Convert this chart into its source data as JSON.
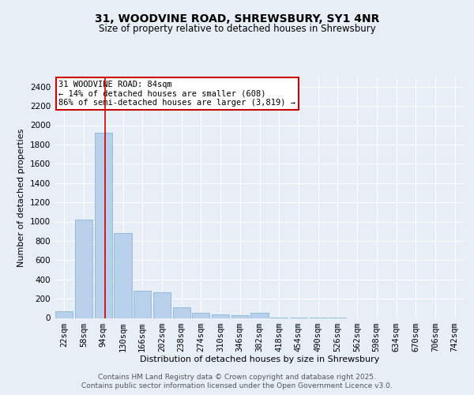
{
  "title_line1": "31, WOODVINE ROAD, SHREWSBURY, SY1 4NR",
  "title_line2": "Size of property relative to detached houses in Shrewsbury",
  "xlabel": "Distribution of detached houses by size in Shrewsbury",
  "ylabel": "Number of detached properties",
  "categories": [
    "22sqm",
    "58sqm",
    "94sqm",
    "130sqm",
    "166sqm",
    "202sqm",
    "238sqm",
    "274sqm",
    "310sqm",
    "346sqm",
    "382sqm",
    "418sqm",
    "454sqm",
    "490sqm",
    "526sqm",
    "562sqm",
    "598sqm",
    "634sqm",
    "670sqm",
    "706sqm",
    "742sqm"
  ],
  "values": [
    70,
    1020,
    1920,
    880,
    280,
    270,
    110,
    50,
    40,
    30,
    50,
    5,
    5,
    5,
    5,
    0,
    0,
    0,
    0,
    0,
    0
  ],
  "bar_color": "#b8d0ea",
  "bar_edge_color": "#7bafd4",
  "vline_color": "#cc0000",
  "vline_pos": 2.1,
  "annotation_text": "31 WOODVINE ROAD: 84sqm\n← 14% of detached houses are smaller (608)\n86% of semi-detached houses are larger (3,819) →",
  "annotation_box_color": "#ffffff",
  "annotation_box_edge": "#cc0000",
  "ylim": [
    0,
    2500
  ],
  "yticks": [
    0,
    200,
    400,
    600,
    800,
    1000,
    1200,
    1400,
    1600,
    1800,
    2000,
    2200,
    2400
  ],
  "background_color": "#e8eef6",
  "plot_bg_color": "#e8eef6",
  "grid_color": "#ffffff",
  "footer_line1": "Contains HM Land Registry data © Crown copyright and database right 2025.",
  "footer_line2": "Contains public sector information licensed under the Open Government Licence v3.0.",
  "title_fontsize": 10,
  "subtitle_fontsize": 8.5,
  "axis_label_fontsize": 8,
  "tick_fontsize": 7.5,
  "annotation_fontsize": 7.5,
  "footer_fontsize": 6.5
}
